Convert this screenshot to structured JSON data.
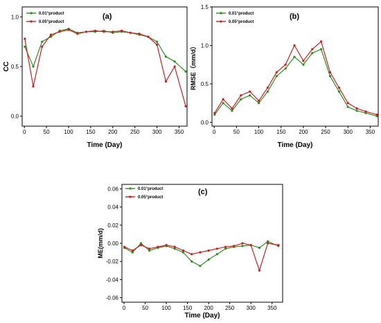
{
  "colors": {
    "s1": "#2e8b22",
    "s2": "#c81e1e"
  },
  "chart_data": [
    {
      "type": "line",
      "panel_label": "(a)",
      "xlabel": "Time  (Day)",
      "ylabel": "CC",
      "xlim": [
        -5,
        368
      ],
      "ylim": [
        -0.1,
        1.1
      ],
      "xticks": [
        0,
        50,
        100,
        150,
        200,
        250,
        300,
        350
      ],
      "yticks": [
        0.0,
        0.5,
        1.0
      ],
      "ytick_labels": [
        "0.0",
        "0.5",
        "1.0"
      ],
      "legend": "top-left",
      "x": [
        1,
        20,
        40,
        60,
        80,
        100,
        120,
        140,
        160,
        180,
        200,
        220,
        240,
        260,
        280,
        300,
        320,
        340,
        365
      ],
      "series": [
        {
          "name": "0.01°product",
          "color": "#2e8b22",
          "values": [
            0.7,
            0.5,
            0.75,
            0.8,
            0.86,
            0.88,
            0.84,
            0.85,
            0.85,
            0.86,
            0.84,
            0.85,
            0.84,
            0.82,
            0.8,
            0.75,
            0.6,
            0.55,
            0.45
          ]
        },
        {
          "name": "0.05°product",
          "color": "#c81e1e",
          "values": [
            0.78,
            0.3,
            0.7,
            0.82,
            0.85,
            0.87,
            0.83,
            0.85,
            0.86,
            0.85,
            0.85,
            0.86,
            0.84,
            0.83,
            0.8,
            0.72,
            0.35,
            0.5,
            0.1
          ]
        }
      ]
    },
    {
      "type": "line",
      "panel_label": "(b)",
      "xlabel": "Time  (Day)",
      "ylabel": "RMSE（mm/d）",
      "xlim": [
        -5,
        368
      ],
      "ylim": [
        -0.05,
        1.5
      ],
      "xticks": [
        0,
        50,
        100,
        150,
        200,
        250,
        300,
        350
      ],
      "yticks": [
        0.0,
        0.5,
        1.0,
        1.5
      ],
      "ytick_labels": [
        "0.0",
        "0.5",
        "1.0",
        "1.5"
      ],
      "legend": "top-left",
      "x": [
        1,
        20,
        40,
        60,
        80,
        100,
        120,
        140,
        160,
        180,
        200,
        220,
        240,
        260,
        280,
        300,
        320,
        340,
        365
      ],
      "series": [
        {
          "name": "0.01°product",
          "color": "#2e8b22",
          "values": [
            0.1,
            0.25,
            0.15,
            0.3,
            0.35,
            0.25,
            0.4,
            0.6,
            0.7,
            0.85,
            0.75,
            0.9,
            0.95,
            0.6,
            0.4,
            0.2,
            0.15,
            0.12,
            0.08
          ]
        },
        {
          "name": "0.05°product",
          "color": "#c81e1e",
          "values": [
            0.12,
            0.3,
            0.18,
            0.35,
            0.4,
            0.28,
            0.45,
            0.65,
            0.75,
            1.0,
            0.8,
            0.95,
            1.05,
            0.65,
            0.45,
            0.25,
            0.18,
            0.14,
            0.1
          ]
        }
      ]
    },
    {
      "type": "line",
      "panel_label": "(c)",
      "xlabel": "Time  (Day)",
      "ylabel": "ME(mm/d)",
      "xlim": [
        -5,
        375
      ],
      "ylim": [
        -0.065,
        0.065
      ],
      "xticks": [
        0,
        50,
        100,
        150,
        200,
        250,
        300,
        350
      ],
      "yticks": [
        -0.06,
        -0.04,
        -0.02,
        0.0,
        0.02,
        0.04,
        0.06
      ],
      "ytick_labels": [
        "-0.06",
        "-0.04",
        "-0.02",
        "0.00",
        "0.02",
        "0.04",
        "0.06"
      ],
      "legend": "top-left",
      "x": [
        1,
        20,
        40,
        60,
        80,
        100,
        120,
        140,
        160,
        180,
        200,
        220,
        240,
        260,
        280,
        300,
        320,
        340,
        365
      ],
      "series": [
        {
          "name": "0.01°product",
          "color": "#2e8b22",
          "values": [
            -0.005,
            -0.01,
            0.0,
            -0.008,
            -0.005,
            -0.003,
            -0.006,
            -0.01,
            -0.02,
            -0.025,
            -0.018,
            -0.012,
            -0.006,
            -0.004,
            -0.003,
            -0.002,
            -0.005,
            0.002,
            -0.003
          ]
        },
        {
          "name": "0.05°product",
          "color": "#c81e1e",
          "values": [
            -0.004,
            -0.008,
            -0.002,
            -0.006,
            -0.004,
            -0.002,
            -0.004,
            -0.008,
            -0.012,
            -0.01,
            -0.008,
            -0.006,
            -0.004,
            -0.003,
            0.0,
            -0.002,
            -0.03,
            0.0,
            -0.002
          ]
        }
      ]
    }
  ]
}
